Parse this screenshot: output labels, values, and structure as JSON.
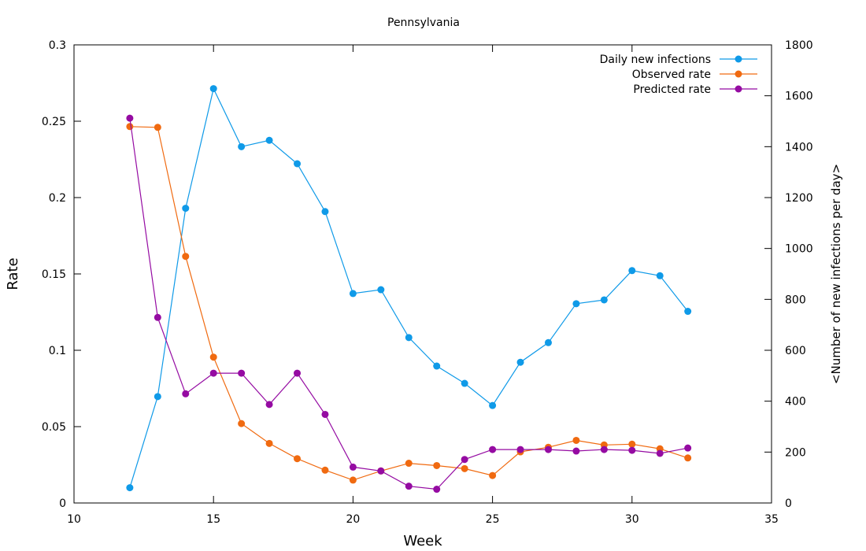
{
  "chart_data": {
    "type": "line",
    "title": "Pennsylvania",
    "xlabel": "Week",
    "ylabel": "Rate",
    "y2label": "<Number of new infections per day>",
    "xlim": [
      10,
      35
    ],
    "ylim": [
      0,
      0.3
    ],
    "y2lim": [
      0,
      1800
    ],
    "x_ticks": [
      "10",
      "15",
      "20",
      "25",
      "30",
      "35"
    ],
    "y_ticks": [
      "0",
      "0.05",
      "0.1",
      "0.15",
      "0.2",
      "0.25",
      "0.3"
    ],
    "y2_ticks": [
      "0",
      "200",
      "400",
      "600",
      "800",
      "1000",
      "1200",
      "1400",
      "1600",
      "1800"
    ],
    "grid": false,
    "legend_position": "top-right",
    "x": [
      12,
      13,
      14,
      15,
      16,
      17,
      18,
      19,
      20,
      21,
      22,
      23,
      24,
      25,
      26,
      27,
      28,
      29,
      30,
      31,
      32
    ],
    "series": [
      {
        "name": "Daily new infections",
        "axis": "right",
        "color": "#0f9ae8",
        "values": [
          60,
          418,
          1158,
          1628,
          1400,
          1425,
          1333,
          1145,
          823,
          838,
          650,
          538,
          470,
          383,
          553,
          630,
          783,
          798,
          913,
          893,
          753
        ]
      },
      {
        "name": "Observed rate",
        "axis": "left",
        "color": "#f06a10",
        "values": [
          0.2465,
          0.246,
          0.1615,
          0.0955,
          0.052,
          0.039,
          0.029,
          0.0215,
          0.015,
          0.021,
          0.026,
          0.0245,
          0.0225,
          0.018,
          0.0335,
          0.0365,
          0.041,
          0.038,
          0.0385,
          0.0355,
          0.0295
        ]
      },
      {
        "name": "Predicted rate",
        "axis": "left",
        "color": "#950ba2",
        "values": [
          0.252,
          0.1215,
          0.0715,
          0.085,
          0.085,
          0.0645,
          0.085,
          0.058,
          0.0235,
          0.021,
          0.011,
          0.009,
          0.0285,
          0.035,
          0.035,
          0.035,
          0.034,
          0.035,
          0.0345,
          0.0325,
          0.036
        ]
      }
    ]
  }
}
